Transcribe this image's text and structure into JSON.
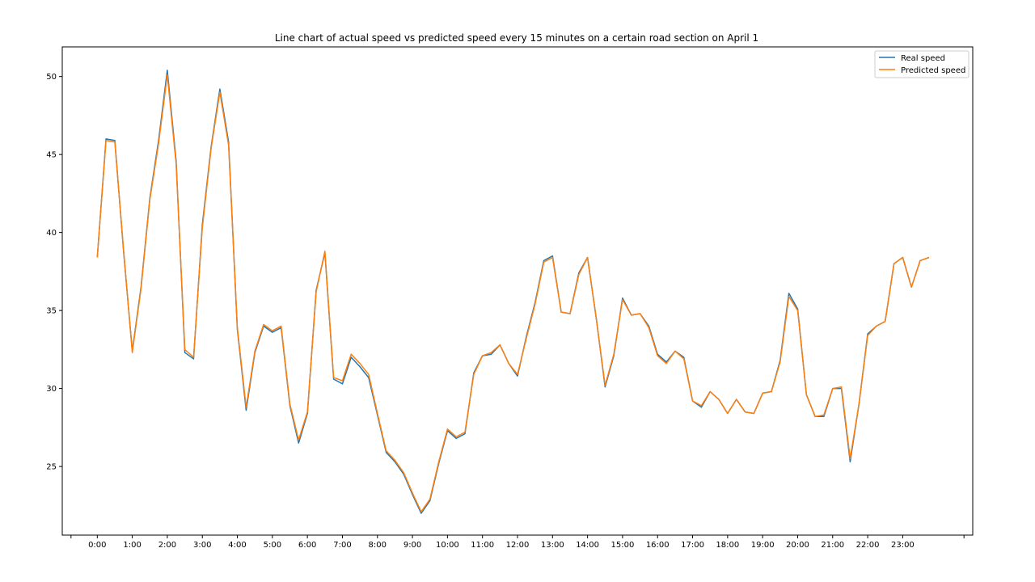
{
  "chart_data": {
    "type": "line",
    "title": "Line chart of actual speed vs predicted speed every 15 minutes on a certain road section on April 1",
    "xlabel": "",
    "ylabel": "",
    "x_tick_labels": [
      "0:00",
      "1:00",
      "2:00",
      "3:00",
      "4:00",
      "5:00",
      "6:00",
      "7:00",
      "8:00",
      "9:00",
      "10:00",
      "11:00",
      "12:00",
      "13:00",
      "14:00",
      "15:00",
      "16:00",
      "17:00",
      "18:00",
      "19:00",
      "20:00",
      "21:00",
      "22:00",
      "23:00"
    ],
    "x_step_minutes": 15,
    "xlim_minutes": [
      -60,
      1500
    ],
    "yticks": [
      25,
      30,
      35,
      40,
      45,
      50
    ],
    "ylim": [
      20.6,
      51.9
    ],
    "grid": false,
    "legend_position": "top-right",
    "series": [
      {
        "name": "Real speed",
        "color": "#1f77b4",
        "values": [
          38.4,
          46.0,
          45.9,
          38.8,
          32.4,
          36.5,
          42.2,
          45.9,
          50.4,
          44.6,
          32.3,
          31.9,
          40.5,
          45.5,
          49.2,
          45.8,
          33.8,
          28.6,
          32.3,
          34.0,
          33.6,
          33.9,
          28.9,
          26.5,
          28.4,
          36.3,
          38.7,
          30.6,
          30.3,
          32.0,
          31.4,
          30.7,
          28.3,
          25.9,
          25.3,
          24.5,
          23.2,
          22.0,
          22.8,
          25.2,
          27.3,
          26.8,
          27.1,
          31.0,
          32.1,
          32.2,
          32.8,
          31.6,
          30.8,
          33.3,
          35.5,
          38.2,
          38.5,
          34.9,
          34.8,
          37.4,
          38.4,
          34.5,
          30.1,
          32.1,
          35.8,
          34.7,
          34.8,
          34.0,
          32.2,
          31.7,
          32.4,
          32.0,
          29.2,
          28.8,
          29.8,
          29.3,
          28.4,
          29.3,
          28.5,
          28.4,
          29.7,
          29.8,
          31.8,
          36.1,
          35.1,
          29.6,
          28.2,
          28.2,
          30.0,
          30.0,
          25.3,
          29.0,
          33.5,
          34.0,
          34.3,
          38.0,
          38.4,
          36.5,
          38.2,
          38.4
        ]
      },
      {
        "name": "Predicted speed",
        "color": "#ff7f0e",
        "values": [
          38.4,
          45.9,
          45.8,
          38.9,
          32.3,
          36.4,
          42.1,
          45.7,
          50.1,
          44.4,
          32.5,
          32.0,
          40.3,
          45.4,
          49.0,
          45.6,
          33.9,
          28.8,
          32.4,
          34.1,
          33.7,
          34.0,
          29.0,
          26.7,
          28.5,
          36.2,
          38.8,
          30.7,
          30.5,
          32.2,
          31.6,
          30.9,
          28.4,
          26.0,
          25.4,
          24.6,
          23.3,
          22.1,
          22.9,
          25.3,
          27.4,
          26.9,
          27.2,
          30.9,
          32.1,
          32.3,
          32.8,
          31.6,
          30.9,
          33.2,
          35.4,
          38.1,
          38.4,
          34.9,
          34.8,
          37.3,
          38.4,
          34.5,
          30.2,
          32.2,
          35.7,
          34.7,
          34.8,
          33.9,
          32.1,
          31.6,
          32.4,
          31.9,
          29.2,
          28.9,
          29.8,
          29.3,
          28.4,
          29.3,
          28.5,
          28.4,
          29.7,
          29.8,
          31.7,
          35.9,
          35.0,
          29.6,
          28.2,
          28.3,
          30.0,
          30.1,
          25.5,
          29.0,
          33.4,
          34.0,
          34.3,
          38.0,
          38.4,
          36.5,
          38.2,
          38.4
        ]
      }
    ]
  }
}
